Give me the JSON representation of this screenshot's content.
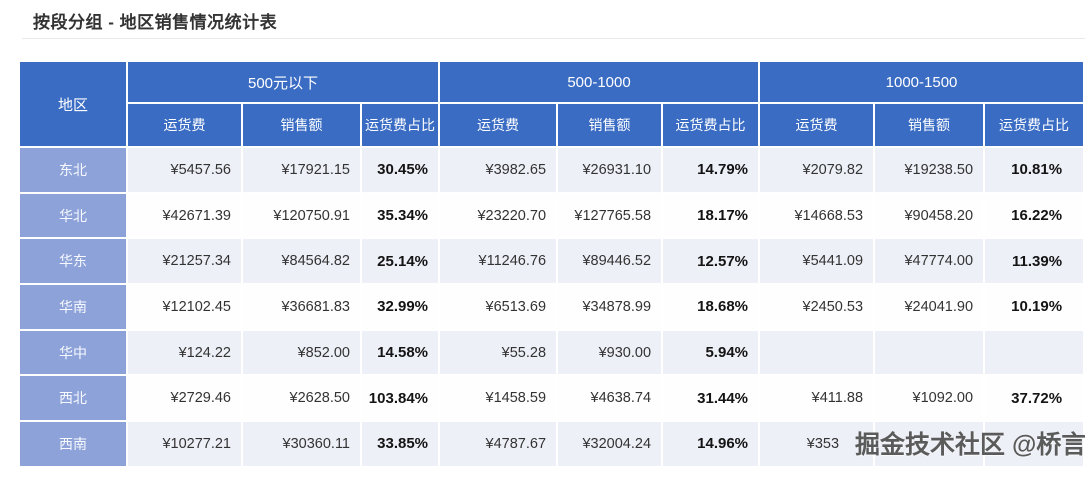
{
  "page": {
    "title": "按段分组 - 地区销售情况统计表"
  },
  "table": {
    "region_header": "地区",
    "groups": [
      {
        "label": "500元以下",
        "sub": [
          "运货费",
          "销售额",
          "运货费占比"
        ]
      },
      {
        "label": "500-1000",
        "sub": [
          "运货费",
          "销售额",
          "运货费占比"
        ]
      },
      {
        "label": "1000-1500",
        "sub": [
          "运货费",
          "销售额",
          "运货费占比"
        ]
      }
    ],
    "rows": [
      {
        "region": "东北",
        "cells": [
          "¥5457.56",
          "¥17921.15",
          "30.45%",
          "¥3982.65",
          "¥26931.10",
          "14.79%",
          "¥2079.82",
          "¥19238.50",
          "10.81%"
        ]
      },
      {
        "region": "华北",
        "cells": [
          "¥42671.39",
          "¥120750.91",
          "35.34%",
          "¥23220.70",
          "¥127765.58",
          "18.17%",
          "¥14668.53",
          "¥90458.20",
          "16.22%"
        ]
      },
      {
        "region": "华东",
        "cells": [
          "¥21257.34",
          "¥84564.82",
          "25.14%",
          "¥11246.76",
          "¥89446.52",
          "12.57%",
          "¥5441.09",
          "¥47774.00",
          "11.39%"
        ]
      },
      {
        "region": "华南",
        "cells": [
          "¥12102.45",
          "¥36681.83",
          "32.99%",
          "¥6513.69",
          "¥34878.99",
          "18.68%",
          "¥2450.53",
          "¥24041.90",
          "10.19%"
        ]
      },
      {
        "region": "华中",
        "cells": [
          "¥124.22",
          "¥852.00",
          "14.58%",
          "¥55.28",
          "¥930.00",
          "5.94%",
          "",
          "",
          ""
        ]
      },
      {
        "region": "西北",
        "cells": [
          "¥2729.46",
          "¥2628.50",
          "103.84%",
          "¥1458.59",
          "¥4638.74",
          "31.44%",
          "¥411.88",
          "¥1092.00",
          "37.72%"
        ]
      },
      {
        "region": "西南",
        "cells": [
          "¥10277.21",
          "¥30360.11",
          "33.85%",
          "¥4787.67",
          "¥32004.24",
          "14.96%",
          "¥353",
          "",
          ""
        ],
        "truncated": true
      }
    ]
  },
  "watermark": {
    "text": "掘金技术社区 @桥言"
  }
}
